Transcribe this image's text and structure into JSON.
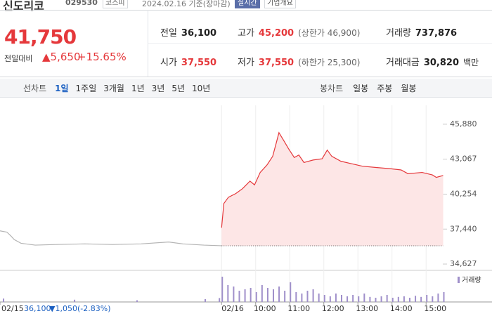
{
  "header": {
    "name": "신도리코",
    "code": "029530",
    "market": "코스피",
    "date": "2024.02.16 기준(장마감)",
    "realtime": "실시간",
    "company": "기업개요"
  },
  "price": {
    "current": "41,750",
    "change_label": "전일대비",
    "change": "5,650",
    "rate": "+15.65%"
  },
  "stats": [
    {
      "label": "전일",
      "value": "36,100"
    },
    {
      "label": "고가",
      "value": "45,200",
      "note": "(상한가 46,900)"
    },
    {
      "label": "거래량",
      "value": "737,876"
    },
    {
      "label": "시가",
      "value": "37,550"
    },
    {
      "label": "저가",
      "value": "37,550",
      "note": "(하한가 25,300)"
    },
    {
      "label": "거래대금",
      "value": "30,820",
      "unit": "백만"
    }
  ],
  "tabs": {
    "line": "선차트",
    "periods": [
      "1일",
      "1주일",
      "3개월",
      "1년",
      "3년",
      "5년",
      "10년"
    ],
    "candle": "봉차트",
    "candles": [
      "일봉",
      "주봉",
      "월봉"
    ]
  },
  "chart_data": {
    "type": "line",
    "xlim": [
      -390,
      476
    ],
    "ylim": [
      34120,
      47400
    ],
    "xticks": [
      {
        "value": -390,
        "label": "02/15"
      },
      {
        "value": 0,
        "label": "02/16"
      },
      {
        "value": 60,
        "label": "10:00"
      },
      {
        "value": 120,
        "label": "11:00"
      },
      {
        "value": 180,
        "label": "12:00"
      },
      {
        "value": 240,
        "label": "13:00"
      },
      {
        "value": 300,
        "label": "14:00"
      },
      {
        "value": 360,
        "label": "15:00"
      }
    ],
    "yticks": [
      {
        "value": 45880,
        "label": "45,880"
      },
      {
        "value": 43067,
        "label": "43,067"
      },
      {
        "value": 40254,
        "label": "40,254"
      },
      {
        "value": 37440,
        "label": "37,440"
      },
      {
        "value": 34627,
        "label": "34,627"
      }
    ],
    "reference": 36100,
    "series": [
      {
        "color": "#b4b4b4",
        "x": [
          -390,
          -378,
          -371,
          -365,
          -353,
          -328,
          -291,
          -241,
          -192,
          -142,
          -93,
          -68,
          -31,
          0
        ],
        "values": [
          37300,
          37200,
          36900,
          36600,
          36300,
          36150,
          36200,
          36250,
          36200,
          36250,
          36400,
          36250,
          36150,
          36100
        ]
      },
      {
        "color": "#e5383b",
        "fill": "#fde6e6",
        "x": [
          0,
          4,
          12,
          25,
          37,
          50,
          58,
          68,
          80,
          90,
          97,
          101,
          109,
          118,
          128,
          136,
          145,
          161,
          177,
          186,
          194,
          210,
          229,
          248,
          272,
          297,
          316,
          328,
          353,
          371,
          378,
          390
        ],
        "values": [
          37550,
          39500,
          40000,
          40300,
          40700,
          41300,
          41000,
          42000,
          42600,
          43300,
          44500,
          45200,
          44600,
          43900,
          43200,
          43400,
          42800,
          43000,
          43100,
          43800,
          43300,
          42900,
          42700,
          42500,
          42400,
          42300,
          42200,
          41900,
          42000,
          41800,
          41600,
          41750
        ]
      }
    ],
    "volume": {
      "name": "거래량",
      "color": "#9f8fca",
      "vlim": [
        0,
        100
      ],
      "x": [
        -385,
        -260,
        -150,
        -30,
        -5,
        0,
        10,
        20,
        30,
        40,
        50,
        60,
        70,
        80,
        90,
        100,
        110,
        120,
        130,
        140,
        150,
        160,
        170,
        180,
        190,
        200,
        210,
        220,
        230,
        240,
        250,
        260,
        270,
        280,
        290,
        300,
        310,
        320,
        330,
        340,
        350,
        360,
        370,
        380,
        390
      ],
      "values": [
        12,
        8,
        6,
        10,
        14,
        90,
        60,
        55,
        40,
        45,
        50,
        35,
        60,
        50,
        45,
        55,
        40,
        70,
        35,
        30,
        40,
        45,
        30,
        25,
        20,
        30,
        25,
        20,
        25,
        20,
        30,
        18,
        15,
        20,
        25,
        15,
        18,
        20,
        15,
        22,
        18,
        25,
        20,
        30,
        35
      ]
    }
  },
  "footer": {
    "date": "02/15",
    "price": "36,100",
    "change": "1,050",
    "rate": "(-2.83%)"
  }
}
